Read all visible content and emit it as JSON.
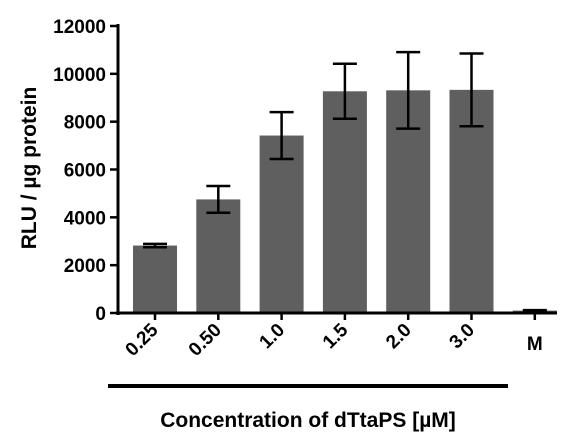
{
  "chart_data": {
    "type": "bar",
    "categories": [
      "0.25",
      "0.50",
      "1.0",
      "1.5",
      "2.0",
      "3.0",
      "M"
    ],
    "values": [
      2820,
      4750,
      7420,
      9270,
      9310,
      9330,
      100
    ],
    "error": [
      70,
      560,
      980,
      1150,
      1600,
      1520,
      20
    ],
    "ylim": [
      0,
      12000
    ],
    "yticks": [
      0,
      2000,
      4000,
      6000,
      8000,
      10000,
      12000
    ],
    "ylabel": "RLU / µg protein",
    "xlabel": "Concentration of dTtaPS [µM]",
    "colors": {
      "bar": "#5f5f5f",
      "axis": "#000000"
    }
  }
}
